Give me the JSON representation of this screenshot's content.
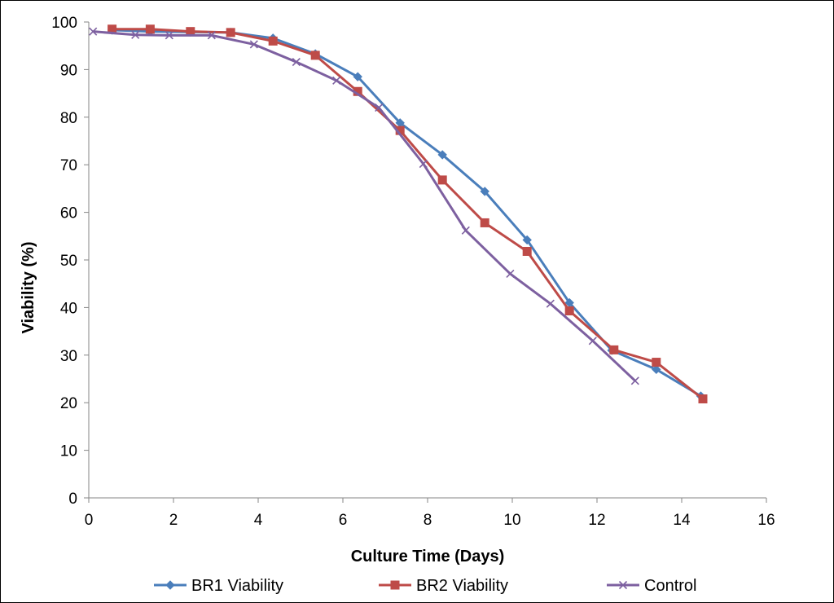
{
  "chart_data": {
    "type": "line",
    "title": "",
    "xlabel": "Culture Time (Days)",
    "ylabel": "Viability (%)",
    "xlim": [
      0,
      16
    ],
    "ylim": [
      0,
      100
    ],
    "x_ticks": [
      0,
      2,
      4,
      6,
      8,
      10,
      12,
      14,
      16
    ],
    "y_ticks": [
      0,
      10,
      20,
      30,
      40,
      50,
      60,
      70,
      80,
      90,
      100
    ],
    "grid": false,
    "legend_position": "bottom",
    "series": [
      {
        "name": "BR1 Viability",
        "color": "#4a7ebb",
        "marker": "diamond",
        "x": [
          0.55,
          1.45,
          2.4,
          3.35,
          4.35,
          5.35,
          6.35,
          7.35,
          8.35,
          9.35,
          10.35,
          11.35,
          12.35,
          13.4,
          14.45
        ],
        "y": [
          98.3,
          98.0,
          97.9,
          97.8,
          96.6,
          93.3,
          88.5,
          78.8,
          72.1,
          64.4,
          54.2,
          41.0,
          31.0,
          27.0,
          21.4
        ]
      },
      {
        "name": "BR2 Viability",
        "color": "#be4b48",
        "marker": "square",
        "x": [
          0.55,
          1.45,
          2.4,
          3.35,
          4.35,
          5.35,
          6.35,
          7.35,
          8.35,
          9.35,
          10.35,
          11.35,
          12.4,
          13.4,
          14.5
        ],
        "y": [
          98.5,
          98.5,
          98.0,
          97.8,
          96.0,
          93.0,
          85.4,
          77.2,
          66.8,
          57.8,
          51.8,
          39.3,
          31.1,
          28.5,
          20.8
        ]
      },
      {
        "name": "Control",
        "color": "#7d60a0",
        "marker": "x",
        "x": [
          0.1,
          1.1,
          1.9,
          2.9,
          3.9,
          4.9,
          5.85,
          6.85,
          7.9,
          8.9,
          9.95,
          10.9,
          11.9,
          12.9
        ],
        "y": [
          98.0,
          97.3,
          97.2,
          97.2,
          95.3,
          91.6,
          87.7,
          82.0,
          70.2,
          56.2,
          47.1,
          40.8,
          33.0,
          24.6
        ]
      }
    ]
  }
}
